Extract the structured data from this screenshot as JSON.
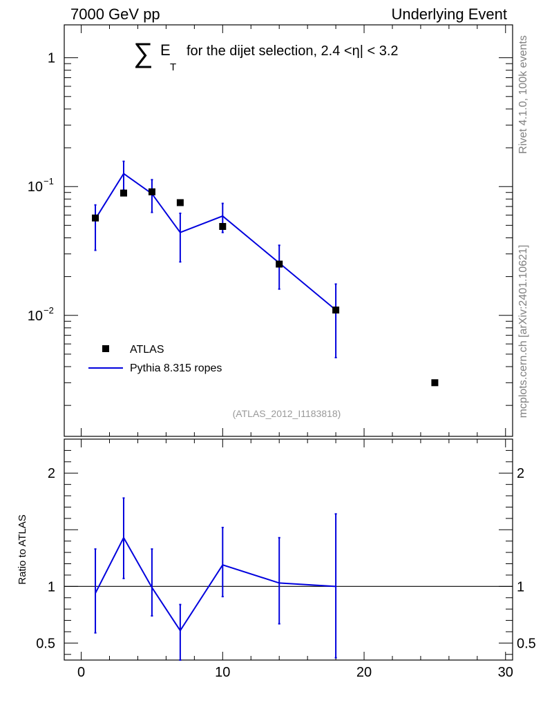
{
  "header": {
    "left": "7000 GeV pp",
    "right": "Underlying Event"
  },
  "side_labels": {
    "rivet": "Rivet 4.1.0,  100k events",
    "mcplots": "mcplots.cern.ch [arXiv:2401.10621]"
  },
  "chart_data": [
    {
      "type": "scatter",
      "panel": "main",
      "title_parts": {
        "sum": "∑",
        "e": "E",
        "t": "T",
        "rest": "for the dijet selection, 2.4 <η| < 3.2"
      },
      "analysis_tag": "(ATLAS_2012_I1183818)",
      "y_scale": "log",
      "ylim": [
        0.00115,
        1.8
      ],
      "xlim": [
        -1.2,
        30.5
      ],
      "y_ticks": [
        {
          "value": 1,
          "label": "1"
        },
        {
          "value": 0.1,
          "label": "10",
          "exp": "−1"
        },
        {
          "value": 0.01,
          "label": "10",
          "exp": "−2"
        }
      ],
      "legend_position": "bottom-left",
      "series": [
        {
          "name": "ATLAS",
          "kind": "markers",
          "color": "#000000",
          "points": [
            {
              "x": 1,
              "y": 0.057
            },
            {
              "x": 3,
              "y": 0.089
            },
            {
              "x": 5,
              "y": 0.091
            },
            {
              "x": 7,
              "y": 0.075
            },
            {
              "x": 10,
              "y": 0.049
            },
            {
              "x": 14,
              "y": 0.025
            },
            {
              "x": 18,
              "y": 0.011
            },
            {
              "x": 25,
              "y": 0.003
            }
          ]
        },
        {
          "name": "Pythia 8.315 ropes",
          "kind": "line",
          "color": "#0000dd",
          "points": [
            {
              "x": 1,
              "y": 0.056,
              "lo": 0.032,
              "hi": 0.072
            },
            {
              "x": 3,
              "y": 0.126,
              "lo": 0.094,
              "hi": 0.157
            },
            {
              "x": 5,
              "y": 0.088,
              "lo": 0.063,
              "hi": 0.113
            },
            {
              "x": 7,
              "y": 0.044,
              "lo": 0.026,
              "hi": 0.062
            },
            {
              "x": 10,
              "y": 0.059,
              "lo": 0.044,
              "hi": 0.074
            },
            {
              "x": 14,
              "y": 0.0255,
              "lo": 0.016,
              "hi": 0.035
            },
            {
              "x": 18,
              "y": 0.011,
              "lo": 0.0047,
              "hi": 0.0175
            }
          ]
        }
      ]
    },
    {
      "type": "line",
      "panel": "ratio",
      "ylabel": "Ratio to ATLAS",
      "ylim": [
        0.35,
        2.3
      ],
      "xlim": [
        -1.2,
        30.5
      ],
      "reference_line": 1,
      "y_ticks": [
        {
          "value": 2,
          "label": "2"
        },
        {
          "value": 1,
          "label": "1"
        },
        {
          "value": 0.5,
          "label": "0.5"
        }
      ],
      "x_ticks": [
        {
          "value": 0,
          "label": "0"
        },
        {
          "value": 10,
          "label": "10"
        },
        {
          "value": 20,
          "label": "20"
        },
        {
          "value": 30,
          "label": "30"
        }
      ],
      "series": [
        {
          "name": "Pythia 8.315 ropes",
          "color": "#0000dd",
          "points": [
            {
              "x": 1,
              "y": 0.94,
              "lo": 0.59,
              "hi": 1.33
            },
            {
              "x": 3,
              "y": 1.43,
              "lo": 1.07,
              "hi": 1.78
            },
            {
              "x": 5,
              "y": 0.99,
              "lo": 0.74,
              "hi": 1.33
            },
            {
              "x": 7,
              "y": 0.61,
              "lo": 0.35,
              "hi": 0.84
            },
            {
              "x": 10,
              "y": 1.19,
              "lo": 0.91,
              "hi": 1.52
            },
            {
              "x": 14,
              "y": 1.03,
              "lo": 0.67,
              "hi": 1.43
            },
            {
              "x": 18,
              "y": 1.0,
              "lo": 0.37,
              "hi": 1.64
            }
          ]
        }
      ]
    }
  ]
}
